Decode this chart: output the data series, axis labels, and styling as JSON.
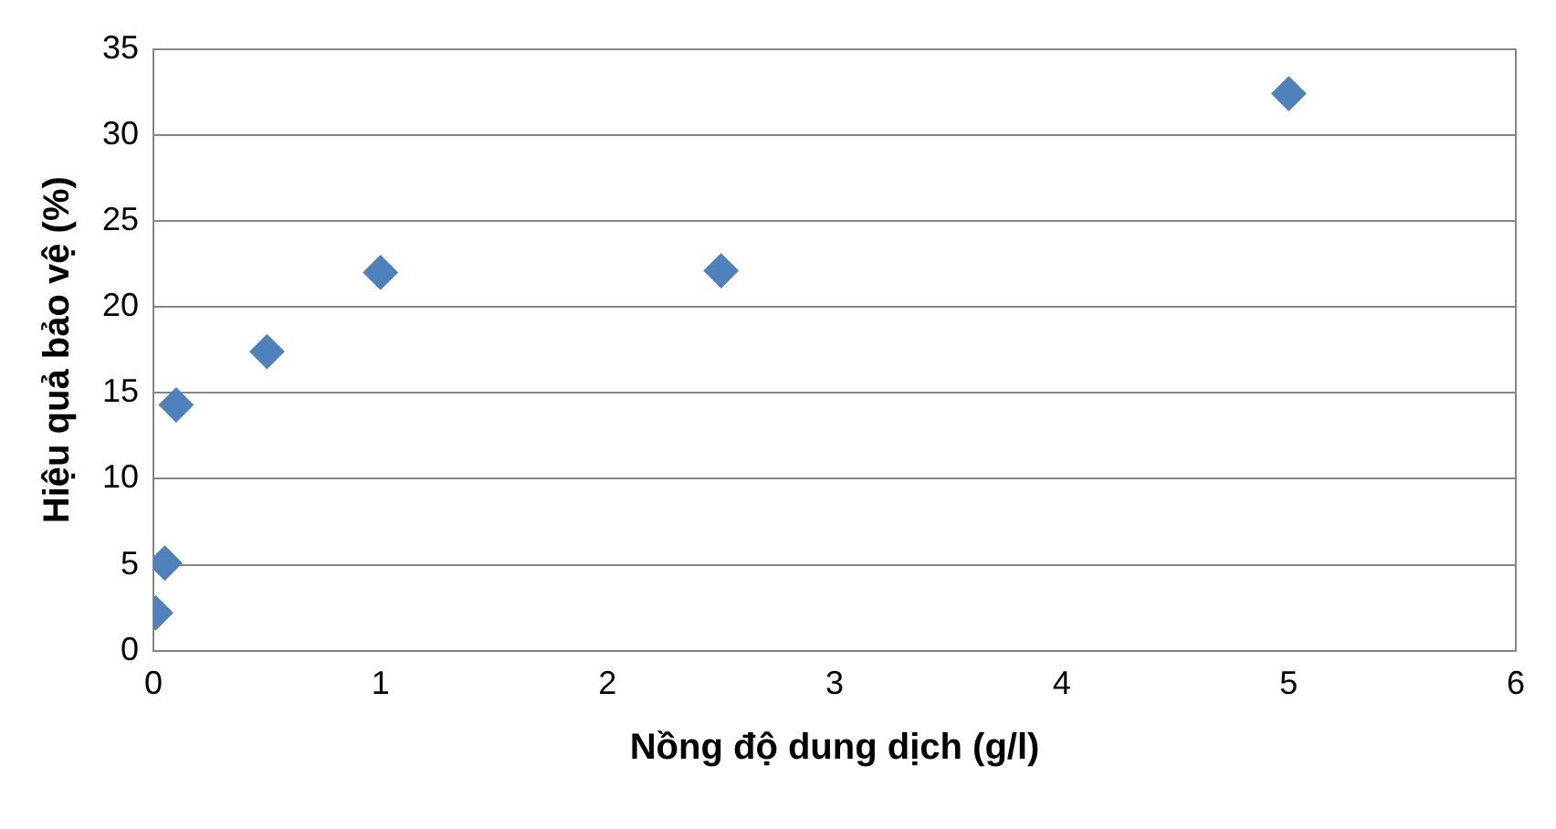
{
  "chart_data": {
    "type": "scatter",
    "xlabel": "Nồng độ dung dịch (g/l)",
    "ylabel": "Hiệu quả bảo vệ (%)",
    "x": [
      0.01,
      0.05,
      0.1,
      0.5,
      1,
      2.5,
      5
    ],
    "series": [
      {
        "color": "#4f81bd",
        "values": [
          2.2,
          5.1,
          14.3,
          17.4,
          22.0,
          22.1,
          32.4
        ]
      }
    ],
    "xlim": [
      0,
      6
    ],
    "xticks": [
      0,
      1,
      2,
      3,
      4,
      5,
      6
    ],
    "ylim": [
      0,
      35
    ],
    "yticks": [
      0,
      5,
      10,
      15,
      20,
      25,
      30,
      35
    ],
    "grid": "y",
    "legend": false,
    "marker": "diamond"
  }
}
